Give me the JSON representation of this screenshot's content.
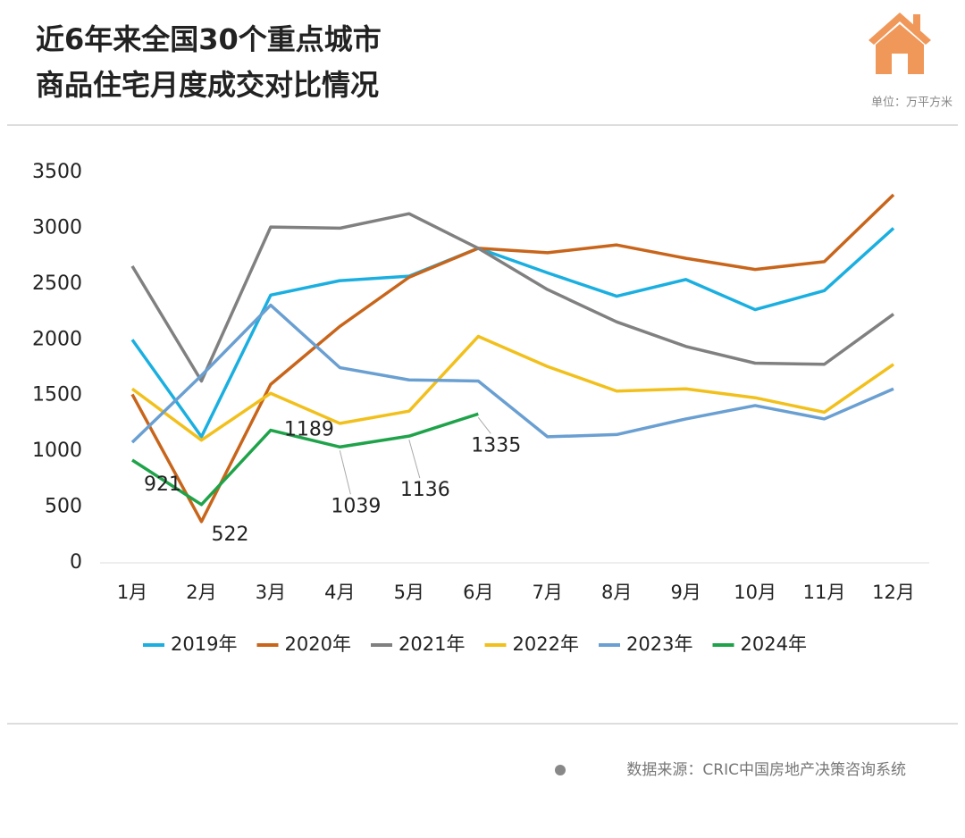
{
  "chart_data": {
    "type": "line",
    "title_lines": [
      "近6年来全国30个重点城市",
      "商品住宅月度成交对比情况"
    ],
    "unit": "单位：万平方米",
    "source": "数据来源：CRIC中国房地产决策咨询系统",
    "categories": [
      "1月",
      "2月",
      "3月",
      "4月",
      "5月",
      "6月",
      "7月",
      "8月",
      "9月",
      "10月",
      "11月",
      "12月"
    ],
    "ylim": [
      0,
      3500
    ],
    "yticks": [
      0,
      500,
      1000,
      1500,
      2000,
      2500,
      3000,
      3500
    ],
    "legend": "bottom",
    "series": [
      {
        "name": "2019年",
        "color": "#1aafe0",
        "values": [
          2000,
          1130,
          2400,
          2530,
          2570,
          2820,
          2600,
          2390,
          2540,
          2270,
          2440,
          3000
        ]
      },
      {
        "name": "2020年",
        "color": "#c8651b",
        "values": [
          1510,
          370,
          1600,
          2120,
          2560,
          2820,
          2780,
          2850,
          2730,
          2630,
          2700,
          3300
        ]
      },
      {
        "name": "2021年",
        "color": "#808080",
        "values": [
          2660,
          1630,
          3010,
          3000,
          3130,
          2820,
          2450,
          2160,
          1940,
          1790,
          1780,
          2230
        ]
      },
      {
        "name": "2022年",
        "color": "#f2c01c",
        "values": [
          1560,
          1100,
          1520,
          1250,
          1360,
          2030,
          1760,
          1540,
          1560,
          1480,
          1350,
          1780
        ]
      },
      {
        "name": "2023年",
        "color": "#6a9fd2",
        "values": [
          1080,
          1680,
          2310,
          1750,
          1640,
          1630,
          1130,
          1150,
          1290,
          1410,
          1290,
          1560
        ]
      },
      {
        "name": "2024年",
        "color": "#1fa34a",
        "values": [
          921,
          522,
          1189,
          1039,
          1136,
          1335,
          null,
          null,
          null,
          null,
          null,
          null
        ]
      }
    ],
    "labeled_series": 5
  }
}
